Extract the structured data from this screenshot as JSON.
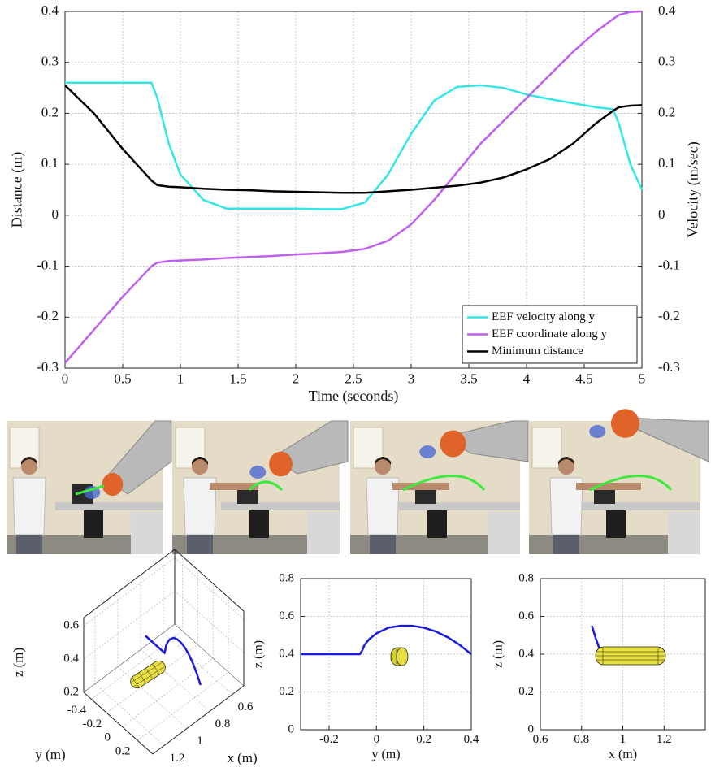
{
  "chart_data": [
    {
      "type": "line",
      "xlabel": "Time (seconds)",
      "ylabel": "Distance (m)",
      "y2label": "Velocity (m/sec)",
      "x": [
        0,
        0.25,
        0.5,
        0.75,
        0.8,
        0.9,
        1,
        1.2,
        1.4,
        1.6,
        1.8,
        2,
        2.2,
        2.4,
        2.6,
        2.8,
        3,
        3.2,
        3.4,
        3.6,
        3.8,
        4,
        4.2,
        4.4,
        4.6,
        4.75,
        4.8,
        4.9,
        5
      ],
      "xlim": [
        0,
        5
      ],
      "xticks": [
        0,
        0.5,
        1,
        1.5,
        2,
        2.5,
        3,
        3.5,
        4,
        4.5,
        5
      ],
      "ylim": [
        -0.3,
        0.4
      ],
      "yticks": [
        -0.3,
        -0.2,
        -0.1,
        0,
        0.1,
        0.2,
        0.3,
        0.4
      ],
      "y2lim": [
        -0.3,
        0.4
      ],
      "y2ticks": [
        -0.3,
        -0.2,
        -0.1,
        0,
        0.1,
        0.2,
        0.3,
        0.4
      ],
      "grid": true,
      "legend": "lower right",
      "series": [
        {
          "name": "EEF velocity along y",
          "color": "#33e6e6",
          "axis": "y2",
          "values": [
            0.26,
            0.26,
            0.26,
            0.26,
            0.23,
            0.14,
            0.08,
            0.03,
            0.013,
            0.013,
            0.013,
            0.013,
            0.012,
            0.012,
            0.025,
            0.08,
            0.16,
            0.225,
            0.252,
            0.255,
            0.25,
            0.237,
            0.228,
            0.22,
            0.212,
            0.208,
            0.18,
            0.1,
            0.05
          ]
        },
        {
          "name": "EEF coordinate along y",
          "color": "#bf5fef",
          "values": [
            -0.29,
            -0.225,
            -0.16,
            -0.1,
            -0.093,
            -0.09,
            -0.089,
            -0.087,
            -0.084,
            -0.082,
            -0.08,
            -0.077,
            -0.075,
            -0.072,
            -0.066,
            -0.05,
            -0.018,
            0.03,
            0.085,
            0.14,
            0.185,
            0.23,
            0.275,
            0.32,
            0.36,
            0.385,
            0.393,
            0.399,
            0.4
          ]
        },
        {
          "name": "Minimum distance",
          "color": "#000000",
          "values": [
            0.255,
            0.2,
            0.13,
            0.068,
            0.059,
            0.056,
            0.055,
            0.052,
            0.05,
            0.049,
            0.047,
            0.046,
            0.045,
            0.044,
            0.044,
            0.047,
            0.05,
            0.054,
            0.058,
            0.064,
            0.074,
            0.09,
            0.11,
            0.14,
            0.18,
            0.205,
            0.212,
            0.215,
            0.216
          ]
        }
      ]
    },
    {
      "type": "line3d",
      "xlabel": "x (m)",
      "ylabel": "y (m)",
      "zlabel": "z (m)",
      "color": "#1a1adc",
      "x": [
        0.88,
        0.88,
        0.88,
        0.88,
        0.88,
        0.88,
        0.88,
        0.88,
        0.88,
        0.88,
        0.88,
        0.88,
        0.88,
        0.88
      ],
      "y": [
        -0.32,
        -0.07,
        -0.06,
        -0.05,
        -0.03,
        0,
        0.05,
        0.1,
        0.15,
        0.2,
        0.25,
        0.3,
        0.35,
        0.4
      ],
      "z": [
        0.4,
        0.4,
        0.42,
        0.45,
        0.48,
        0.51,
        0.54,
        0.55,
        0.55,
        0.54,
        0.52,
        0.49,
        0.45,
        0.4
      ],
      "xlim": [
        0.5,
        1.3
      ],
      "xticks": [
        0.6,
        0.8,
        1,
        1.2
      ],
      "ylim": [
        -0.5,
        0.4
      ],
      "yticks": [
        -0.4,
        -0.2,
        0,
        0.2
      ],
      "zlim": [
        0.2,
        0.65
      ],
      "zticks": [
        0.2,
        0.4,
        0.6
      ],
      "grid": true
    },
    {
      "type": "line",
      "xlabel": "y (m)",
      "ylabel": "z (m)",
      "x": [
        -0.32,
        -0.07,
        -0.06,
        -0.05,
        -0.03,
        0,
        0.05,
        0.1,
        0.15,
        0.2,
        0.25,
        0.3,
        0.35,
        0.4
      ],
      "xlim": [
        -0.32,
        0.4
      ],
      "xticks": [
        -0.2,
        0,
        0.2,
        0.4
      ],
      "ylim": [
        0,
        0.8
      ],
      "yticks": [
        0,
        0.2,
        0.4,
        0.6,
        0.8
      ],
      "grid": true,
      "series": [
        {
          "color": "#1a1adc",
          "values": [
            0.4,
            0.4,
            0.42,
            0.45,
            0.48,
            0.51,
            0.54,
            0.55,
            0.55,
            0.54,
            0.52,
            0.49,
            0.45,
            0.4
          ]
        }
      ]
    },
    {
      "type": "line",
      "xlabel": "x (m)",
      "ylabel": "z (m)",
      "x": [
        0.85,
        0.87,
        0.89,
        0.9
      ],
      "xlim": [
        0.6,
        1.4
      ],
      "xticks": [
        0.6,
        0.8,
        1,
        1.2
      ],
      "ylim": [
        0,
        0.8
      ],
      "yticks": [
        0,
        0.2,
        0.4,
        0.6,
        0.8
      ],
      "grid": true,
      "series": [
        {
          "color": "#1a1adc",
          "values": [
            0.55,
            0.48,
            0.42,
            0.4
          ]
        }
      ]
    }
  ]
}
